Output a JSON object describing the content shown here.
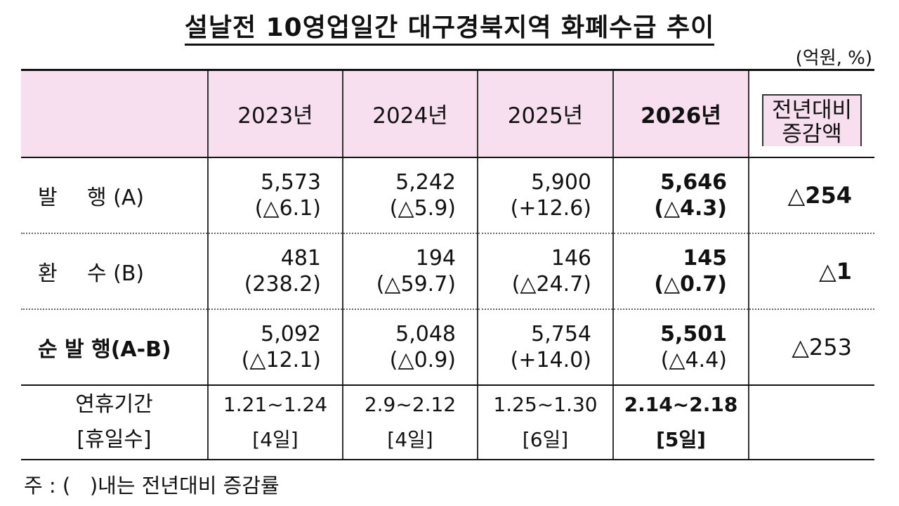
{
  "title": "설날전 10영업일간 대구경북지역 화폐수급 추이",
  "unit": "(억원, %)",
  "columns": [
    "2023년",
    "2024년",
    "2025년",
    "2026년"
  ],
  "change_header": [
    "전년대비",
    "증감액"
  ],
  "rows": [
    {
      "label_left": "발",
      "label_right": "행 (A)",
      "values": [
        "5,573",
        "5,242",
        "5,900",
        "5,646"
      ],
      "rates": [
        "(△6.1)",
        "(△5.9)",
        "(+12.6)",
        "(△4.3)"
      ],
      "change": "△254"
    },
    {
      "label_left": "환",
      "label_right": "수 (B)",
      "values": [
        "481",
        "194",
        "146",
        "145"
      ],
      "rates": [
        "(238.2)",
        "(△59.7)",
        "(△24.7)",
        "(△0.7)"
      ],
      "change": "△1"
    },
    {
      "label": "순 발 행(A-B)",
      "values": [
        "5,092",
        "5,048",
        "5,754",
        "5,501"
      ],
      "rates": [
        "(△12.1)",
        "(△0.9)",
        "(+14.0)",
        "(△4.4)"
      ],
      "change": "△253"
    }
  ],
  "holiday": {
    "label": [
      "연휴기간",
      "[휴일수]"
    ],
    "periods": [
      "1.21~1.24",
      "2.9~2.12",
      "1.25~1.30",
      "2.14~2.18"
    ],
    "days": [
      "[4일]",
      "[4일]",
      "[6일]",
      "[5일]"
    ]
  },
  "note": "주 : (   )내는 전년대비 증감률"
}
